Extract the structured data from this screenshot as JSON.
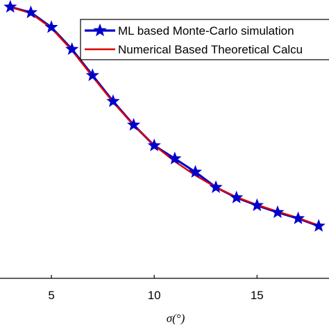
{
  "chart_data": {
    "type": "line",
    "xlabel": "σ(°)",
    "ylabel": "",
    "xlim": [
      2.5,
      18.5
    ],
    "ylim": [
      0,
      1
    ],
    "x_ticks": [
      5,
      10,
      15
    ],
    "grid": false,
    "legend_position": "top-right",
    "series": [
      {
        "name": "ML based Monte-Carlo simulation",
        "color": "#0000cc",
        "marker": "star",
        "x": [
          3,
          4,
          5,
          6,
          7,
          8,
          9,
          10,
          11,
          12,
          13,
          14,
          15,
          16,
          17,
          18
        ],
        "y": [
          0.975,
          0.955,
          0.902,
          0.823,
          0.729,
          0.636,
          0.551,
          0.477,
          0.43,
          0.382,
          0.327,
          0.29,
          0.262,
          0.237,
          0.215,
          0.188
        ]
      },
      {
        "name": "Numerical Based Theoretical Calcu",
        "color": "#dd0000",
        "marker": "none",
        "x": [
          3,
          4,
          5,
          6,
          7,
          8,
          9,
          10,
          11,
          12,
          13,
          14,
          15,
          16,
          17,
          18
        ],
        "y": [
          0.975,
          0.952,
          0.899,
          0.819,
          0.725,
          0.633,
          0.55,
          0.478,
          0.42,
          0.37,
          0.327,
          0.292,
          0.264,
          0.24,
          0.217,
          0.19
        ]
      }
    ]
  }
}
